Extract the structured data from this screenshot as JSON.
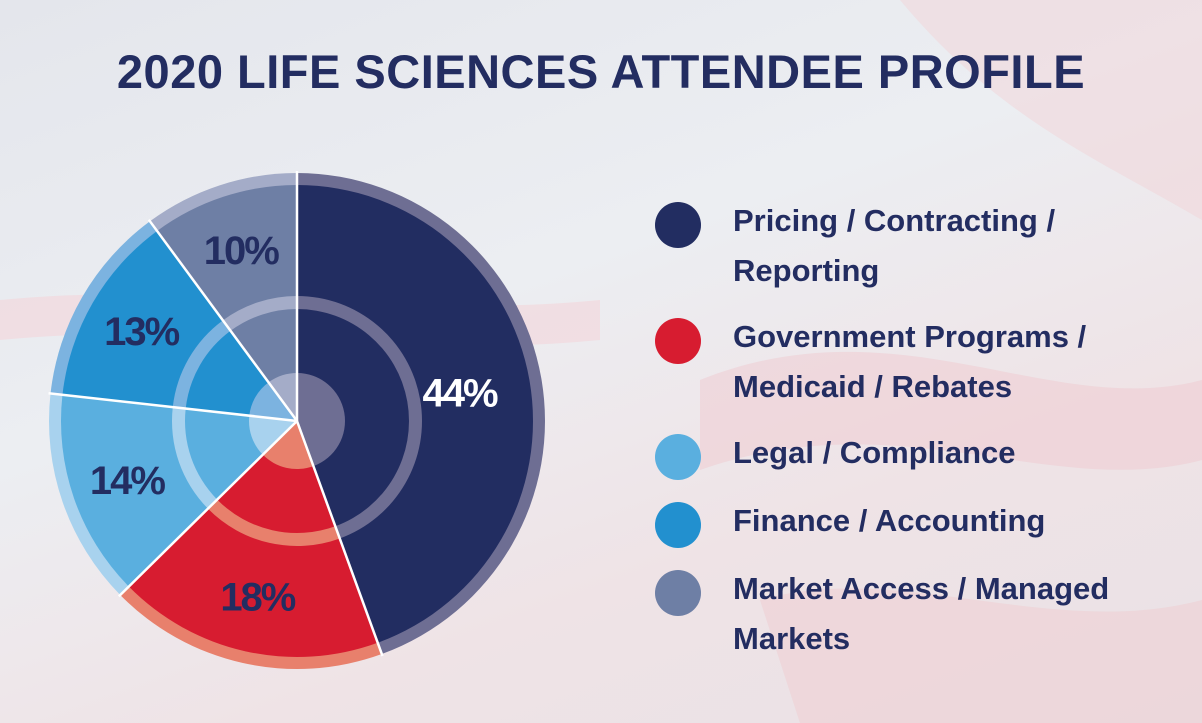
{
  "chart_data": {
    "type": "pie",
    "title": "2020 LIFE SCIENCES ATTENDEE PROFILE",
    "slices": [
      {
        "label": "Pricing / Contracting / Reporting",
        "value": 44,
        "value_label": "44%",
        "color": "#222d61",
        "ring_color": "#6e6e93",
        "text_color": "#ffffff"
      },
      {
        "label": "Government Programs / Medicaid / Rebates",
        "value": 18,
        "value_label": "18%",
        "color": "#d71c30",
        "ring_color": "#e8806c",
        "text_color": "#232d61"
      },
      {
        "label": "Legal / Compliance",
        "value": 14,
        "value_label": "14%",
        "color": "#5aafdf",
        "ring_color": "#a8d2ee",
        "text_color": "#232d61"
      },
      {
        "label": "Finance / Accounting",
        "value": 13,
        "value_label": "13%",
        "color": "#2290cf",
        "ring_color": "#7cb3e0",
        "text_color": "#232d61"
      },
      {
        "label": "Market Access / Managed Markets",
        "value": 10,
        "value_label": "10%",
        "color": "#6e7fa5",
        "ring_color": "#a4acc8",
        "text_color": "#232d61"
      }
    ],
    "legend_placement": "right"
  }
}
